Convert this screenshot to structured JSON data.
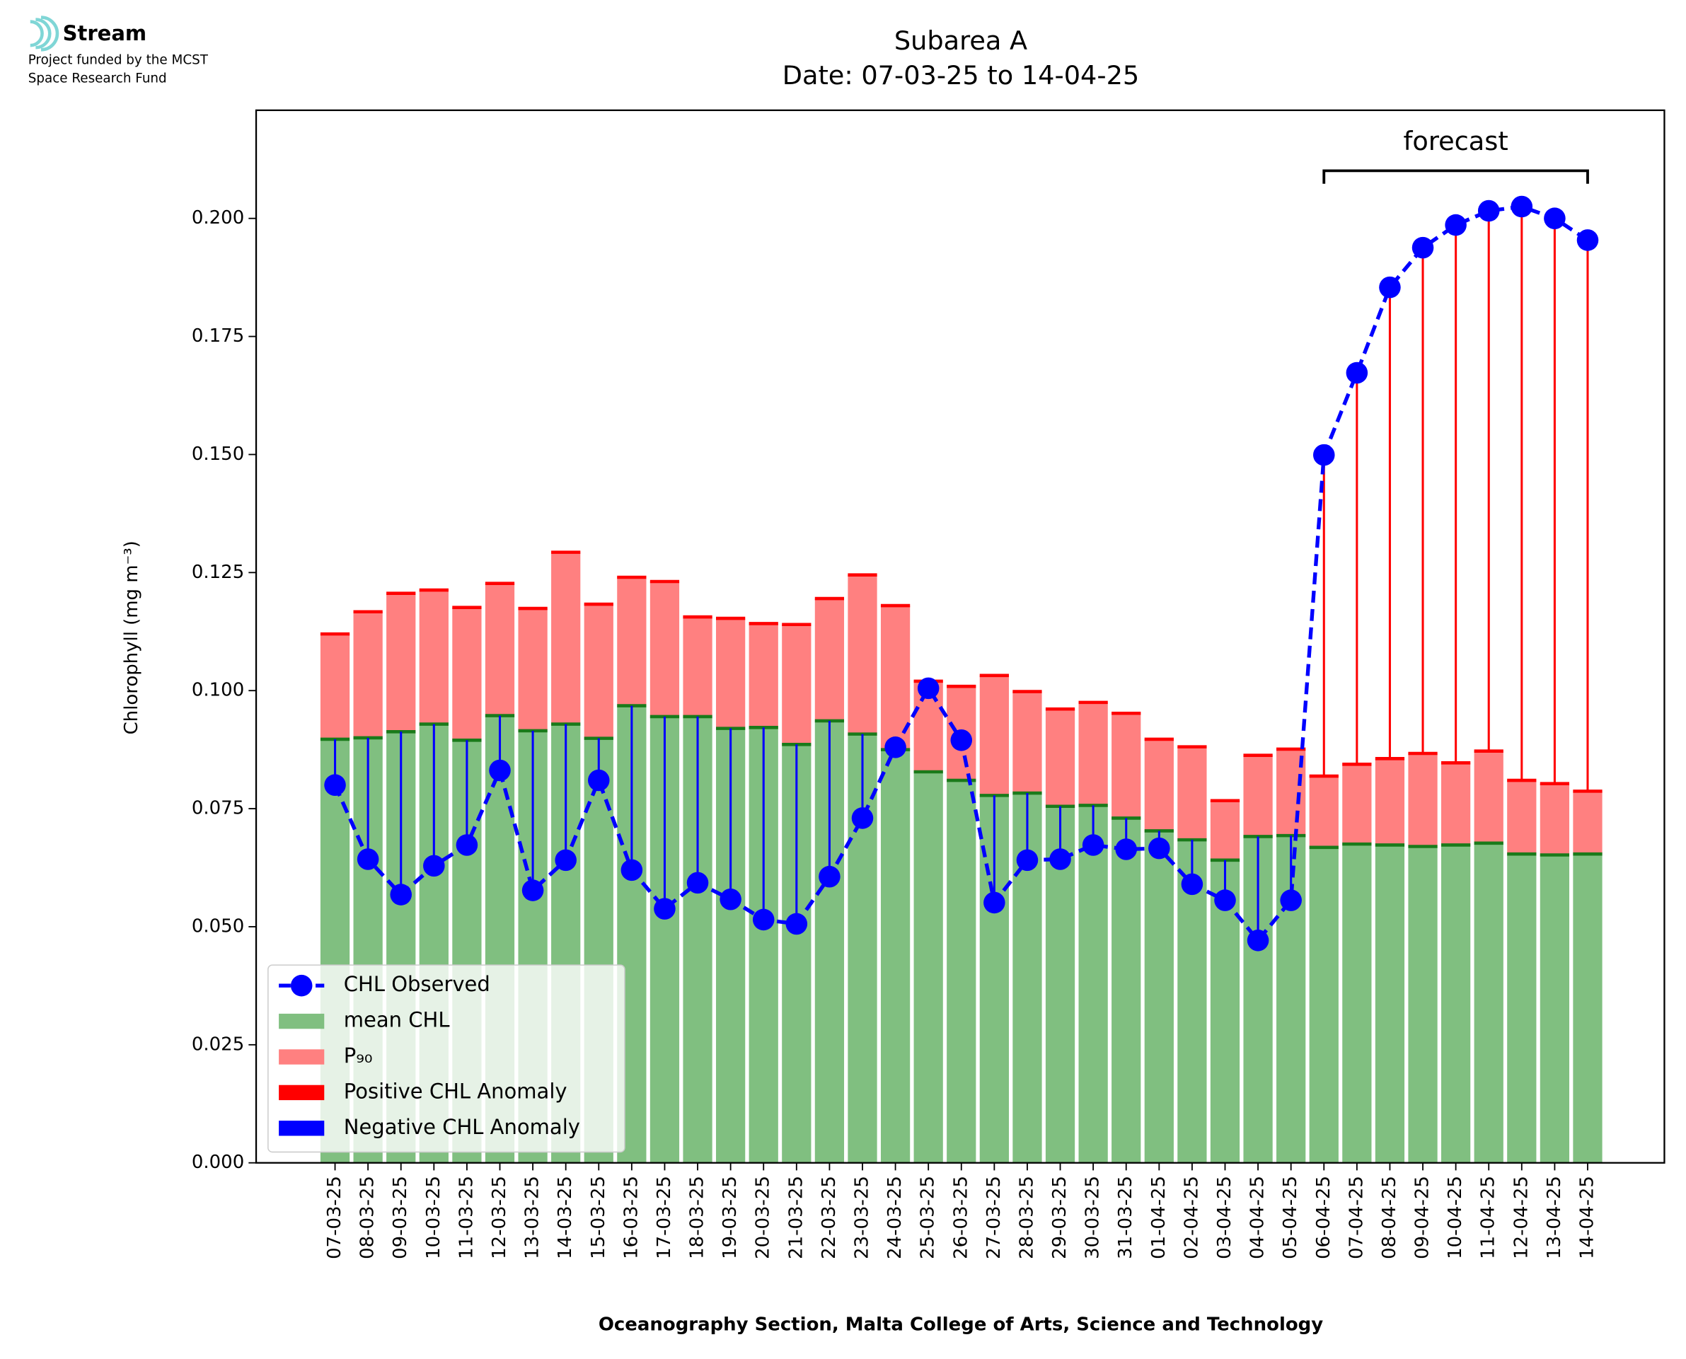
{
  "logo": {
    "name": "Stream",
    "line1": "Project funded by the MCST",
    "line2": "Space Research Fund"
  },
  "chart_data": {
    "type": "bar",
    "title": "Subarea A",
    "subtitle": "Date: 07-03-25 to 14-04-25",
    "x_label": "Oceanography Section, Malta College of Arts, Science and Technology",
    "y_label": "Chlorophyll (mg m⁻³)",
    "annotation": "forecast",
    "categories": [
      "07-03-25",
      "08-03-25",
      "09-03-25",
      "10-03-25",
      "11-03-25",
      "12-03-25",
      "13-03-25",
      "14-03-25",
      "15-03-25",
      "16-03-25",
      "17-03-25",
      "18-03-25",
      "19-03-25",
      "20-03-25",
      "21-03-25",
      "22-03-25",
      "23-03-25",
      "24-03-25",
      "25-03-25",
      "26-03-25",
      "27-03-25",
      "28-03-25",
      "29-03-25",
      "30-03-25",
      "31-03-25",
      "01-04-25",
      "02-04-25",
      "03-04-25",
      "04-04-25",
      "05-04-25",
      "06-04-25",
      "07-04-25",
      "08-04-25",
      "09-04-25",
      "10-04-25",
      "11-04-25",
      "12-04-25",
      "13-04-25",
      "14-04-25"
    ],
    "series": [
      {
        "name": "CHL Observed",
        "color": "#0000ff",
        "values": [
          0.08,
          0.0643,
          0.0568,
          0.0629,
          0.0673,
          0.0831,
          0.0577,
          0.0641,
          0.081,
          0.062,
          0.0538,
          0.0593,
          0.0558,
          0.0515,
          0.0506,
          0.0606,
          0.073,
          0.088,
          0.1005,
          0.0895,
          0.0551,
          0.0641,
          0.0643,
          0.0673,
          0.0664,
          0.0666,
          0.059,
          0.0556,
          0.0471,
          0.0556,
          0.1499,
          0.1673,
          0.1854,
          0.1938,
          0.1986,
          0.2016,
          0.2025,
          0.2,
          0.1954
        ]
      },
      {
        "name": "mean CHL",
        "color": "#80bf80",
        "values": [
          0.0897,
          0.09,
          0.0913,
          0.0929,
          0.0895,
          0.0947,
          0.0915,
          0.0929,
          0.0899,
          0.0968,
          0.0945,
          0.0945,
          0.092,
          0.0922,
          0.0886,
          0.0936,
          0.0908,
          0.0875,
          0.0828,
          0.081,
          0.0778,
          0.0783,
          0.0755,
          0.0757,
          0.073,
          0.0703,
          0.0684,
          0.0641,
          0.0691,
          0.0693,
          0.0668,
          0.0675,
          0.0673,
          0.067,
          0.0673,
          0.0677,
          0.0654,
          0.0652,
          0.0654
        ]
      },
      {
        "name": "P₉₀",
        "color": "#ff8080",
        "values": [
          0.112,
          0.1167,
          0.1206,
          0.1213,
          0.1176,
          0.1227,
          0.1174,
          0.1293,
          0.1183,
          0.124,
          0.1231,
          0.1156,
          0.1153,
          0.1142,
          0.114,
          0.1195,
          0.1245,
          0.118,
          0.102,
          0.1009,
          0.1032,
          0.0998,
          0.0961,
          0.0975,
          0.0952,
          0.0897,
          0.0881,
          0.0767,
          0.0863,
          0.0876,
          0.0819,
          0.0844,
          0.0856,
          0.0867,
          0.0847,
          0.0872,
          0.081,
          0.0803,
          0.0787
        ]
      }
    ],
    "anomaly_legend": [
      {
        "name": "Positive CHL Anomaly",
        "color": "#ff0000"
      },
      {
        "name": "Negative CHL Anomaly",
        "color": "#0000ff"
      }
    ],
    "ylim": [
      0,
      0.2229
    ],
    "yticks": [
      {
        "value": 0,
        "label": "0.000"
      },
      {
        "value": 0.025,
        "label": "0.025"
      },
      {
        "value": 0.05,
        "label": "0.050"
      },
      {
        "value": 0.075,
        "label": "0.075"
      },
      {
        "value": 0.1,
        "label": "0.100"
      },
      {
        "value": 0.125,
        "label": "0.125"
      },
      {
        "value": 0.15,
        "label": "0.150"
      },
      {
        "value": 0.175,
        "label": "0.175"
      },
      {
        "value": 0.2,
        "label": "0.200"
      }
    ],
    "legend": "lower left"
  }
}
